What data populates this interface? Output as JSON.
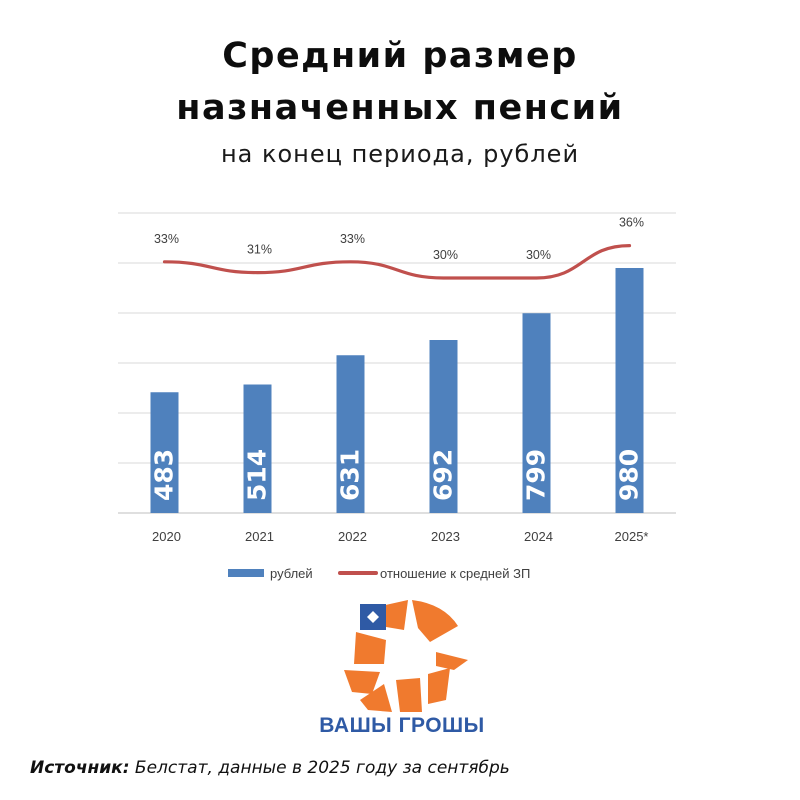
{
  "title_line1": "Средний размер",
  "title_line2": "назначенных пенсий",
  "subtitle": "на конец периода, рублей",
  "source_label": "Источник:",
  "source_text": " Белстат, данные в 2025 году за сентябрь",
  "logo_text": "ВАШЫ ГРОШЫ",
  "colors": {
    "bar": "#4f81bd",
    "line": "#c0504d",
    "grid": "#d9d9d9",
    "logo_orange": "#f07a2e",
    "logo_blue": "#2f5aa5"
  },
  "chart_data": {
    "type": "bar",
    "categories": [
      "2020",
      "2021",
      "2022",
      "2023",
      "2024",
      "2025*"
    ],
    "series": [
      {
        "name": "рублей",
        "type": "bar",
        "values": [
          483,
          514,
          631,
          692,
          799,
          980
        ]
      },
      {
        "name": "отношение к средней ЗП",
        "type": "line",
        "values": [
          33,
          31,
          33,
          30,
          30,
          36
        ],
        "labels": [
          "33%",
          "31%",
          "33%",
          "30%",
          "30%",
          "36%"
        ]
      }
    ],
    "ylim": [
      0,
      1200
    ],
    "grid": true,
    "legend": "bottom"
  }
}
